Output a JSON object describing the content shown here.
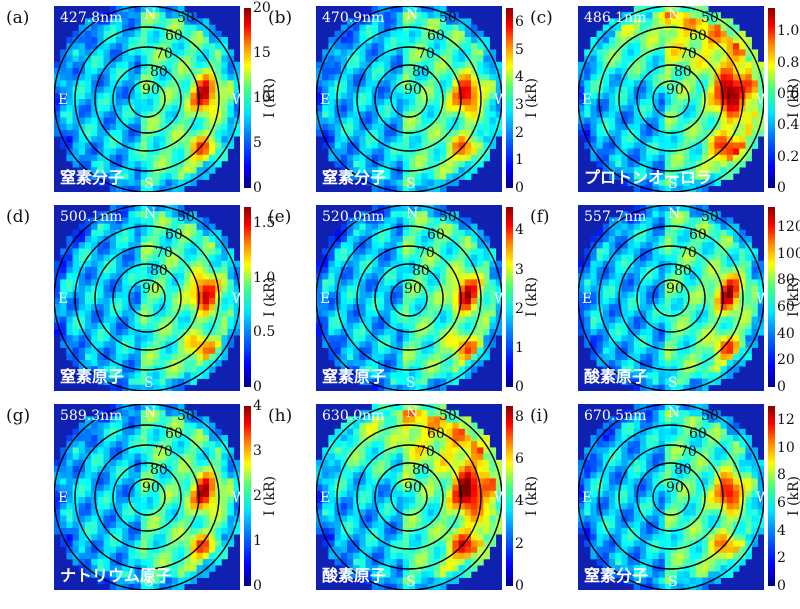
{
  "chart_data": [
    {
      "type": "heatmap",
      "panel_label": "(a)",
      "wavelength": "427.8nm",
      "species": "窒素分子",
      "ylabel": "I (kR)",
      "ticks": [
        "0",
        "5",
        "10",
        "15",
        "20"
      ],
      "range": [
        0,
        20
      ]
    },
    {
      "type": "heatmap",
      "panel_label": "(b)",
      "wavelength": "470.9nm",
      "species": "窒素分子",
      "ylabel": "I (kR)",
      "ticks": [
        "0",
        "1",
        "2",
        "3",
        "4",
        "5",
        "6"
      ],
      "range": [
        0,
        6.5
      ]
    },
    {
      "type": "heatmap",
      "panel_label": "(c)",
      "wavelength": "486.1nm",
      "species": "プロトンオーロラ",
      "ylabel": "I (kR)",
      "ticks": [
        "0",
        "0.2",
        "0.4",
        "0.6",
        "0.8",
        "1.0"
      ],
      "range": [
        0,
        1.15
      ]
    },
    {
      "type": "heatmap",
      "panel_label": "(d)",
      "wavelength": "500.1nm",
      "species": "窒素原子",
      "ylabel": "I (kR)",
      "ticks": [
        "0",
        "0.5",
        "1.0",
        "1.5"
      ],
      "range": [
        0,
        1.65
      ]
    },
    {
      "type": "heatmap",
      "panel_label": "(e)",
      "wavelength": "520.0nm",
      "species": "窒素原子",
      "ylabel": "I (kR)",
      "ticks": [
        "0",
        "1",
        "2",
        "3",
        "4"
      ],
      "range": [
        0,
        4.6
      ]
    },
    {
      "type": "heatmap",
      "panel_label": "(f)",
      "wavelength": "557.7nm",
      "species": "酸素原子",
      "ylabel": "I (kR)",
      "ticks": [
        "0",
        "20",
        "40",
        "60",
        "80",
        "100",
        "120"
      ],
      "range": [
        0,
        135
      ]
    },
    {
      "type": "heatmap",
      "panel_label": "(g)",
      "wavelength": "589.3nm",
      "species": "ナトリウム原子",
      "ylabel": "I (kR)",
      "ticks": [
        "0",
        "1",
        "2",
        "3",
        "4"
      ],
      "range": [
        0,
        4
      ]
    },
    {
      "type": "heatmap",
      "panel_label": "(h)",
      "wavelength": "630.0nm",
      "species": "酸素原子",
      "ylabel": "I (kR)",
      "ticks": [
        "0",
        "2",
        "4",
        "6",
        "8"
      ],
      "range": [
        0,
        8.5
      ]
    },
    {
      "type": "heatmap",
      "panel_label": "(i)",
      "wavelength": "670.5nm",
      "species": "窒素分子",
      "ylabel": "I (kR)",
      "ticks": [
        "0",
        "2",
        "4",
        "6",
        "8",
        "10",
        "12"
      ],
      "range": [
        0,
        13
      ]
    }
  ],
  "axes": {
    "directions": [
      "N",
      "S",
      "E",
      "W"
    ],
    "elevation_rings": [
      "50",
      "60",
      "70",
      "80",
      "90"
    ]
  },
  "colors": {
    "colormap": "jet",
    "ring_line": "#000000",
    "label_text": "#ffffff"
  }
}
